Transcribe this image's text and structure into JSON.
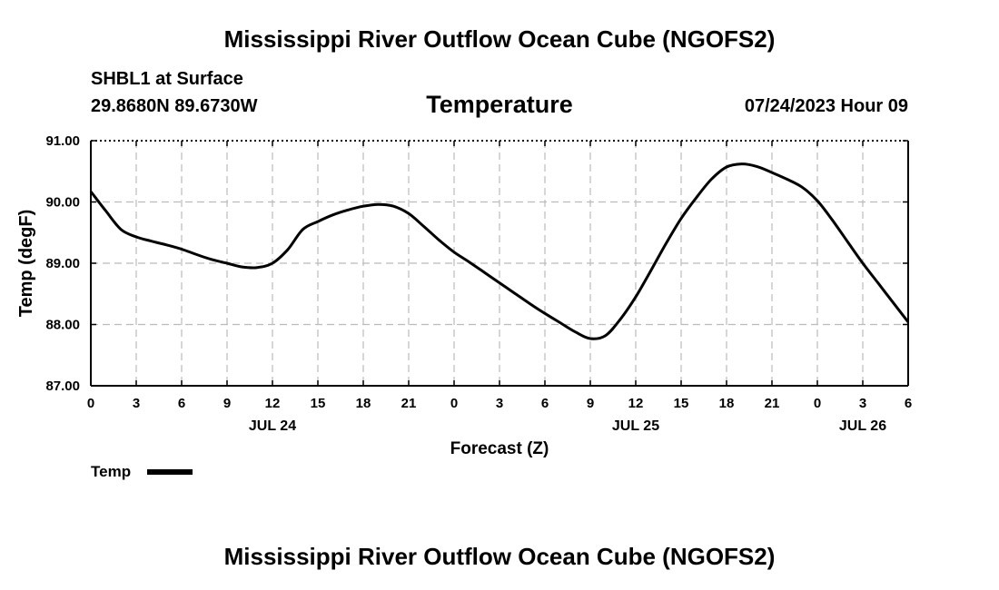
{
  "header": {
    "title": "Mississippi River Outflow Ocean Cube (NGOFS2)",
    "station": "SHBL1 at Surface",
    "coords": "29.8680N  89.6730W",
    "variable": "Temperature",
    "datetime": "07/24/2023 Hour 09"
  },
  "footer": {
    "title": "Mississippi River Outflow Ocean Cube (NGOFS2)"
  },
  "legend": {
    "label": "Temp"
  },
  "colors": {
    "line": "#000000",
    "grid": "#bbbbbb"
  },
  "chart_data": {
    "type": "line",
    "title": "Temperature",
    "xlabel": "Forecast (Z)",
    "ylabel": "Temp (degF)",
    "xlim": [
      0,
      54
    ],
    "ylim": [
      87,
      91
    ],
    "grid": true,
    "x_ticks": [
      0,
      3,
      6,
      9,
      12,
      15,
      18,
      21,
      24,
      27,
      30,
      33,
      36,
      39,
      42,
      45,
      48,
      51,
      54
    ],
    "x_tick_labels": [
      "0",
      "3",
      "6",
      "9",
      "12",
      "15",
      "18",
      "21",
      "0",
      "3",
      "6",
      "9",
      "12",
      "15",
      "18",
      "21",
      "0",
      "3",
      "6"
    ],
    "y_ticks": [
      87,
      88,
      89,
      90,
      91
    ],
    "y_tick_labels": [
      "87.00",
      "88.00",
      "89.00",
      "90.00",
      "91.00"
    ],
    "date_labels": [
      {
        "x": 12,
        "label": "JUL 24"
      },
      {
        "x": 36,
        "label": "JUL 25"
      },
      {
        "x": 51,
        "label": "JUL 26"
      }
    ],
    "series": [
      {
        "name": "Temp",
        "x": [
          0,
          1,
          2,
          3,
          4,
          5,
          6,
          7,
          8,
          9,
          10,
          11,
          12,
          13,
          14,
          15,
          16,
          17,
          18,
          19,
          20,
          21,
          22,
          23,
          24,
          25,
          26,
          27,
          28,
          29,
          30,
          31,
          32,
          33,
          34,
          35,
          36,
          37,
          38,
          39,
          40,
          41,
          42,
          43,
          44,
          45,
          46,
          47,
          48,
          49,
          50,
          51,
          52,
          53,
          54
        ],
        "values": [
          90.17,
          89.85,
          89.55,
          89.43,
          89.36,
          89.3,
          89.23,
          89.14,
          89.06,
          89.0,
          88.94,
          88.93,
          89.0,
          89.22,
          89.55,
          89.68,
          89.79,
          89.87,
          89.93,
          89.96,
          89.93,
          89.81,
          89.6,
          89.38,
          89.18,
          89.02,
          88.85,
          88.68,
          88.51,
          88.34,
          88.18,
          88.03,
          87.88,
          87.77,
          87.82,
          88.09,
          88.45,
          88.88,
          89.32,
          89.73,
          90.07,
          90.37,
          90.57,
          90.62,
          90.58,
          90.48,
          90.37,
          90.24,
          90.02,
          89.7,
          89.35,
          89.0,
          88.68,
          88.36,
          88.04
        ]
      }
    ]
  }
}
